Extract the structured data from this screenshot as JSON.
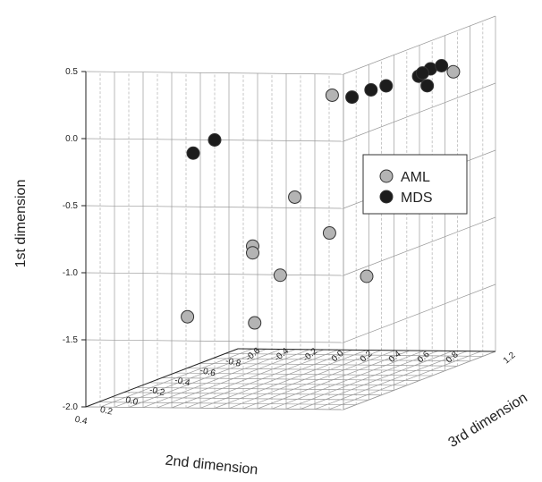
{
  "chart_data": {
    "type": "scatter",
    "projection": "3d",
    "title": "",
    "axes": {
      "y": {
        "label": "1st dimension",
        "range": [
          -2.0,
          0.5
        ],
        "ticks": [
          "0.5",
          "0.0",
          "-0.5",
          "-1.0",
          "-1.5",
          "-2.0"
        ]
      },
      "x": {
        "label": "2nd dimension",
        "range": [
          -0.8,
          0.4
        ],
        "ticks": [
          "0.4",
          "0.2",
          "0.0",
          "-0.2",
          "-0.4",
          "-0.6",
          "-0.8"
        ]
      },
      "z": {
        "label": "3rd dimension",
        "range": [
          -0.6,
          1.2
        ],
        "ticks": [
          "-0.6",
          "-0.4",
          "-0.2",
          "0.0",
          "0.2",
          "0.4",
          "0.6",
          "0.8",
          "1.2"
        ]
      }
    },
    "grid": true,
    "legend_position": "right",
    "series": [
      {
        "name": "AML",
        "color": "#b4b4b4",
        "points": [
          {
            "x": 0.15,
            "z": 0.9,
            "y": 0.25
          },
          {
            "x": -0.75,
            "z": 0.95,
            "y": 0.1
          },
          {
            "x": 0.05,
            "z": 0.55,
            "y": -0.55
          },
          {
            "x": 0.1,
            "z": 0.3,
            "y": -0.9
          },
          {
            "x": 0.1,
            "z": 0.3,
            "y": -0.95
          },
          {
            "x": -0.45,
            "z": 0.35,
            "y": -1.0
          },
          {
            "x": -0.4,
            "z": 0.05,
            "y": -1.3
          },
          {
            "x": 0.05,
            "z": -0.2,
            "y": -1.45
          },
          {
            "x": -0.8,
            "z": 0.3,
            "y": -1.45
          },
          {
            "x": -0.65,
            "z": -0.35,
            "y": -1.75
          }
        ]
      },
      {
        "name": "MDS",
        "color": "#1c1c1c",
        "points": [
          {
            "x": 0.4,
            "z": 0.3,
            "y": 0.0
          },
          {
            "x": 0.4,
            "z": 0.15,
            "y": -0.1
          },
          {
            "x": 0.05,
            "z": 0.95,
            "y": 0.2
          },
          {
            "x": -0.05,
            "z": 1.1,
            "y": 0.25
          },
          {
            "x": -0.1,
            "z": 0.95,
            "y": 0.2
          },
          {
            "x": -0.25,
            "z": 1.15,
            "y": 0.25
          },
          {
            "x": -0.4,
            "z": 1.1,
            "y": 0.25
          },
          {
            "x": -0.45,
            "z": 1.0,
            "y": 0.2
          },
          {
            "x": -0.6,
            "z": 1.0,
            "y": 0.2
          },
          {
            "x": -0.6,
            "z": 0.9,
            "y": 0.05
          }
        ]
      }
    ]
  }
}
